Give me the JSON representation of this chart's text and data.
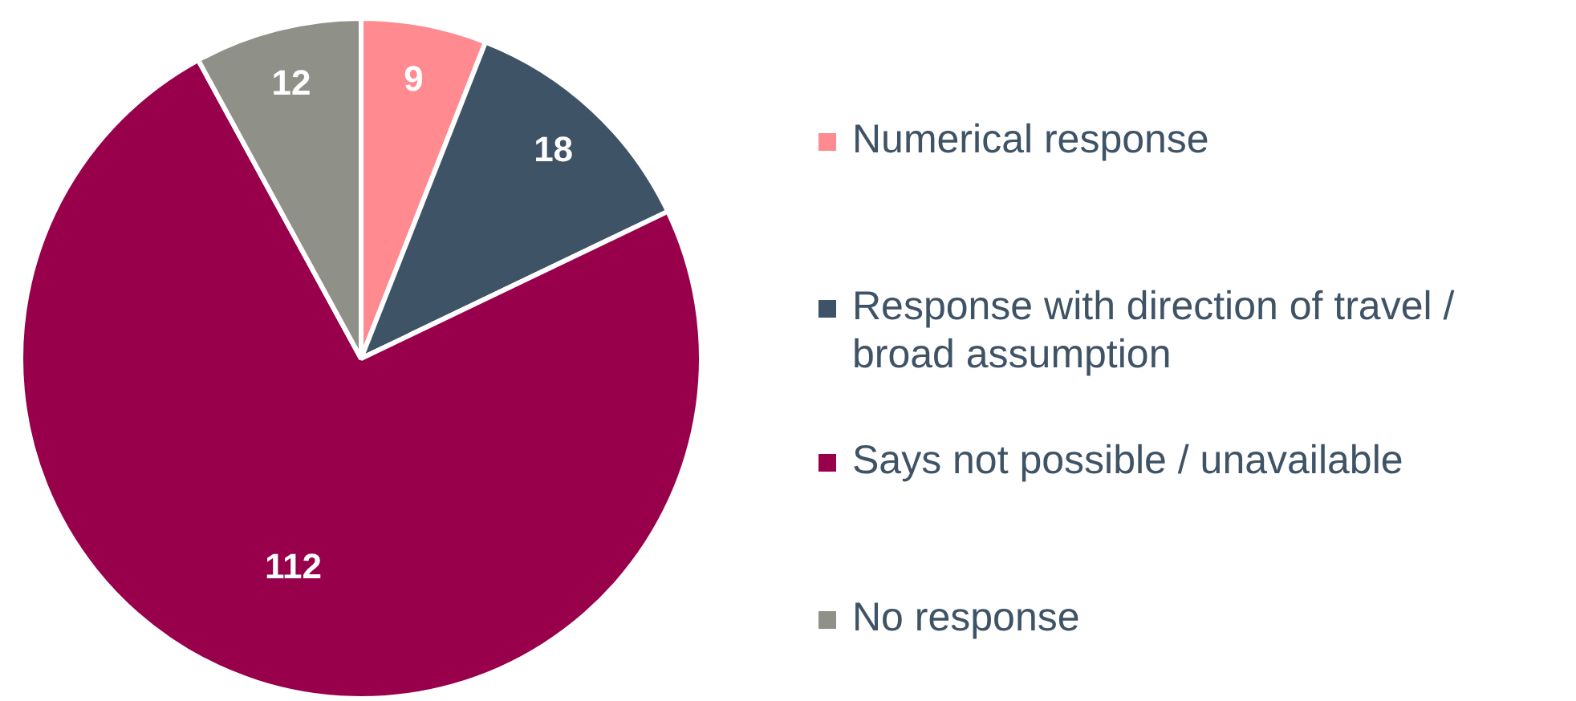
{
  "chart_data": {
    "type": "pie",
    "categories": [
      "Numerical response",
      "Response with direction of travel / broad assumption",
      "Says not possible / unavailable",
      "No response"
    ],
    "values": [
      9,
      18,
      112,
      12
    ],
    "colors": [
      "#ff8a8f",
      "#3f5366",
      "#99004c",
      "#8f9088"
    ],
    "data_labels": true,
    "legend": "right"
  }
}
